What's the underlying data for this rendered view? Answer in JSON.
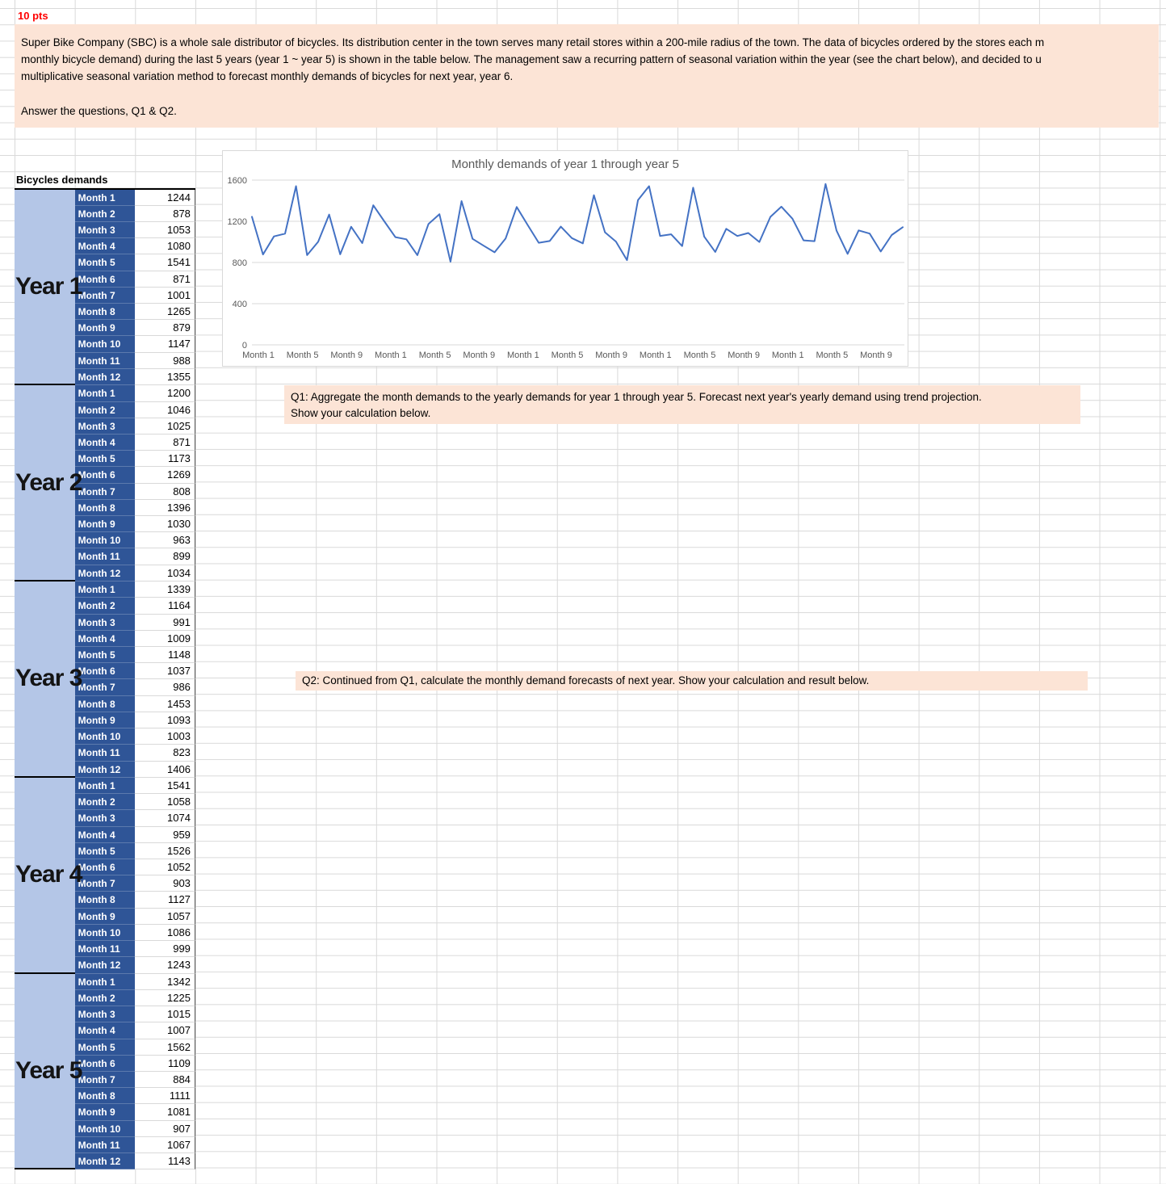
{
  "points_label": "10 pts",
  "intro": {
    "lines": [
      "Super Bike Company (SBC) is a whole sale distributor of bicycles. Its distribution center in the town serves many retail stores within a 200-mile radius of the town. The data of bicycles ordered by the stores each m",
      "monthly bicycle demand) during the last 5 years (year 1 ~ year 5) is shown in the table below. The management saw a recurring pattern of seasonal variation within the year (see the chart below), and decided to u",
      "multiplicative seasonal variation method to forecast monthly demands of bicycles for next year, year 6."
    ],
    "answer_prompt": "Answer the questions, Q1 & Q2."
  },
  "table": {
    "title": "Bicycles demands",
    "month_labels": [
      "Month 1",
      "Month 2",
      "Month 3",
      "Month 4",
      "Month 5",
      "Month 6",
      "Month 7",
      "Month 8",
      "Month 9",
      "Month 10",
      "Month 11",
      "Month 12"
    ],
    "years": [
      {
        "label": "Year 1",
        "values": [
          1244,
          878,
          1053,
          1080,
          1541,
          871,
          1001,
          1265,
          879,
          1147,
          988,
          1355
        ]
      },
      {
        "label": "Year 2",
        "values": [
          1200,
          1046,
          1025,
          871,
          1173,
          1269,
          808,
          1396,
          1030,
          963,
          899,
          1034
        ]
      },
      {
        "label": "Year 3",
        "values": [
          1339,
          1164,
          991,
          1009,
          1148,
          1037,
          986,
          1453,
          1093,
          1003,
          823,
          1406
        ]
      },
      {
        "label": "Year 4",
        "values": [
          1541,
          1058,
          1074,
          959,
          1526,
          1052,
          903,
          1127,
          1057,
          1086,
          999,
          1243
        ]
      },
      {
        "label": "Year 5",
        "values": [
          1342,
          1225,
          1015,
          1007,
          1562,
          1109,
          884,
          1111,
          1081,
          907,
          1067,
          1143
        ]
      }
    ]
  },
  "chart_data": {
    "type": "line",
    "title": "Monthly demands of year 1 through year 5",
    "xlabel": "",
    "ylabel": "",
    "ylim": [
      0,
      1600
    ],
    "y_ticks": [
      0,
      400,
      800,
      1200,
      1600
    ],
    "x_tick_labels": [
      "Month 1",
      "Month 5",
      "Month 9",
      "Month 1",
      "Month 5",
      "Month 9",
      "Month 1",
      "Month 5",
      "Month 9",
      "Month 1",
      "Month 5",
      "Month 9",
      "Month 1",
      "Month 5",
      "Month 9"
    ],
    "grid": true,
    "legend": false,
    "line_color": "#4472C4",
    "series": [
      {
        "name": "Monthly demand",
        "values": [
          1244,
          878,
          1053,
          1080,
          1541,
          871,
          1001,
          1265,
          879,
          1147,
          988,
          1355,
          1200,
          1046,
          1025,
          871,
          1173,
          1269,
          808,
          1396,
          1030,
          963,
          899,
          1034,
          1339,
          1164,
          991,
          1009,
          1148,
          1037,
          986,
          1453,
          1093,
          1003,
          823,
          1406,
          1541,
          1058,
          1074,
          959,
          1526,
          1052,
          903,
          1127,
          1057,
          1086,
          999,
          1243,
          1342,
          1225,
          1015,
          1007,
          1562,
          1109,
          884,
          1111,
          1081,
          907,
          1067,
          1143
        ]
      }
    ]
  },
  "questions": {
    "q1_lines": [
      "Q1: Aggregate the month demands to the yearly demands for year 1 through year 5. Forecast next year's yearly demand using trend projection.",
      "Show your calculation below."
    ],
    "q2": "Q2: Continued from Q1, calculate the monthly demand forecasts of next year. Show your calculation and result below."
  }
}
